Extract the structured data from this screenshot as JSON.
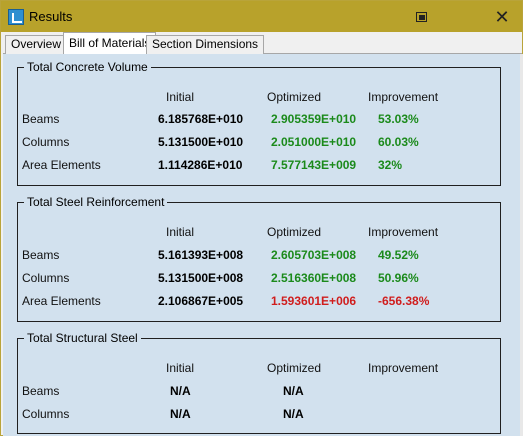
{
  "window": {
    "title": "Results",
    "icons": {
      "app": "results-app-icon",
      "restore": "restore-window-icon",
      "close": "close-icon"
    },
    "close_glyph": "✕"
  },
  "tabs": [
    {
      "label": "Overview",
      "active": false
    },
    {
      "label": "Bill of Materials",
      "active": true
    },
    {
      "label": "Section Dimensions",
      "active": false
    }
  ],
  "columns": {
    "initial": "Initial",
    "optimized": "Optimized",
    "improvement": "Improvement"
  },
  "groups": {
    "concrete": {
      "title": "Total Concrete Volume",
      "rows": [
        {
          "label": "Beams",
          "initial": "6.185768E+010",
          "optimized": "2.905359E+010",
          "improvement": "53.03%"
        },
        {
          "label": "Columns",
          "initial": "5.131500E+010",
          "optimized": "2.051000E+010",
          "improvement": "60.03%"
        },
        {
          "label": "Area Elements",
          "initial": "1.114286E+010",
          "optimized": "7.577143E+009",
          "improvement": "32%"
        }
      ]
    },
    "steel": {
      "title": "Total Steel Reinforcement",
      "rows": [
        {
          "label": "Beams",
          "initial": "5.161393E+008",
          "optimized": "2.605703E+008",
          "improvement": "49.52%"
        },
        {
          "label": "Columns",
          "initial": "5.131500E+008",
          "optimized": "2.516360E+008",
          "improvement": "50.96%"
        },
        {
          "label": "Area Elements",
          "initial": "2.106867E+005",
          "optimized": "1.593601E+006",
          "improvement": "-656.38%"
        }
      ]
    },
    "structural": {
      "title": "Total Structural Steel",
      "rows": [
        {
          "label": "Beams",
          "initial": "N/A",
          "optimized": "N/A",
          "improvement": ""
        },
        {
          "label": "Columns",
          "initial": "N/A",
          "optimized": "N/A",
          "improvement": ""
        }
      ]
    }
  },
  "colors": {
    "titlebar": "#b8a22b",
    "panel": "#d2e1ee",
    "positive": "#1b8a1b",
    "negative": "#d01d1d"
  }
}
